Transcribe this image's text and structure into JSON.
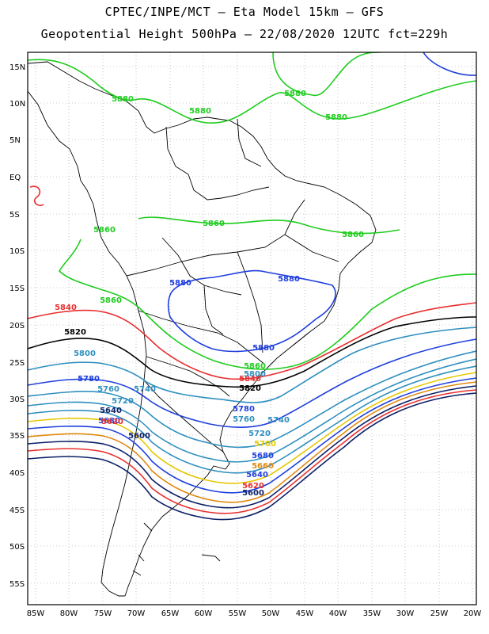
{
  "title_line1": "CPTEC/INPE/MCT  –   Eta Model 15km  –  GFS",
  "title_line2": "Geopotential Height 500hPa – 22/08/2020 12UTC fct=229h",
  "lat_ticks": [
    "15N",
    "10N",
    "5N",
    "EQ",
    "5S",
    "10S",
    "15S",
    "20S",
    "25S",
    "30S",
    "35S",
    "40S",
    "45S",
    "50S",
    "55S"
  ],
  "lon_ticks": [
    "85W",
    "80W",
    "75W",
    "70W",
    "65W",
    "60W",
    "55W",
    "50W",
    "45W",
    "40W",
    "35W",
    "30W",
    "25W",
    "20W"
  ],
  "contour_labels": [
    {
      "text": "5880",
      "color": "#1fcc1f"
    },
    {
      "text": "5880",
      "color": "#1fcc1f"
    },
    {
      "text": "5880",
      "color": "#1fcc1f"
    },
    {
      "text": "5880",
      "color": "#1fcc1f"
    },
    {
      "text": "5860",
      "color": "#1fcc1f"
    },
    {
      "text": "5860",
      "color": "#1fcc1f"
    },
    {
      "text": "5860",
      "color": "#1fcc1f"
    },
    {
      "text": "5860",
      "color": "#1fcc1f"
    },
    {
      "text": "5860",
      "color": "#1fcc1f"
    },
    {
      "text": "5880",
      "color": "#1f3fdd"
    },
    {
      "text": "5880",
      "color": "#1f3fdd"
    },
    {
      "text": "5880",
      "color": "#1f3fdd"
    },
    {
      "text": "5840",
      "color": "#e83030"
    },
    {
      "text": "5840",
      "color": "#e83030"
    },
    {
      "text": "5820",
      "color": "#000000"
    },
    {
      "text": "5820",
      "color": "#000000"
    },
    {
      "text": "5800",
      "color": "#2f8fbf"
    },
    {
      "text": "5800",
      "color": "#2f8fbf"
    },
    {
      "text": "5780",
      "color": "#1f3fdd"
    },
    {
      "text": "5780",
      "color": "#1f3fdd"
    },
    {
      "text": "5760",
      "color": "#2f8fbf"
    },
    {
      "text": "5740",
      "color": "#2f8fbf"
    },
    {
      "text": "5760",
      "color": "#2f8fbf"
    },
    {
      "text": "5740",
      "color": "#2f8fbf"
    },
    {
      "text": "5720",
      "color": "#2f8fbf"
    },
    {
      "text": "5720",
      "color": "#2f8fbf"
    },
    {
      "text": "5700",
      "color": "#e6c800"
    },
    {
      "text": "5680",
      "color": "#1f3fdd"
    },
    {
      "text": "5660",
      "color": "#e08a10"
    },
    {
      "text": "5640",
      "color": "#1f3fdd"
    },
    {
      "text": "5620",
      "color": "#e83030"
    },
    {
      "text": "5600",
      "color": "#0b1f66"
    },
    {
      "text": "5680",
      "color": "#1f3fdd"
    },
    {
      "text": "5640",
      "color": "#0b1f66"
    },
    {
      "text": "5620",
      "color": "#e83030"
    },
    {
      "text": "5600",
      "color": "#0b1f66"
    }
  ]
}
